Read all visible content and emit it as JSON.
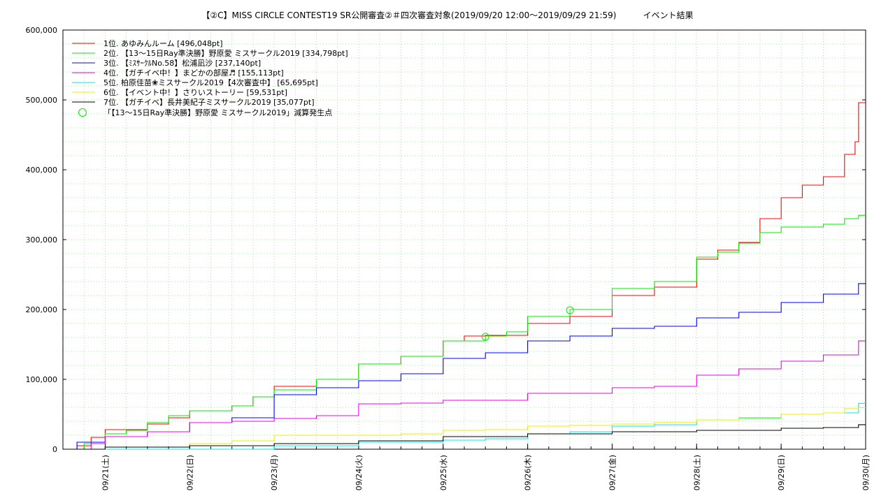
{
  "chart_data": {
    "type": "line",
    "title": "【②C】MISS CIRCLE CONTEST19 SR公開審査②＃四次審査対象(2019/09/20 12:00～2019/09/29 21:59)          イベント結果",
    "xlabel": "",
    "ylabel": "",
    "x_range": [
      "2019/09/20 12:00",
      "2019/09/30 00:00"
    ],
    "ylim": [
      0,
      600000
    ],
    "y_ticks": [
      {
        "value": 0,
        "label": "0"
      },
      {
        "value": 100000,
        "label": "100,000"
      },
      {
        "value": 200000,
        "label": "200,000"
      },
      {
        "value": 300000,
        "label": "300,000"
      },
      {
        "value": 400000,
        "label": "400,000"
      },
      {
        "value": 500000,
        "label": "500,000"
      },
      {
        "value": 600000,
        "label": "600,000"
      }
    ],
    "x_ticks": [
      {
        "value": "2019/09/21",
        "label": "09/21(土)"
      },
      {
        "value": "2019/09/22",
        "label": "09/22(日)"
      },
      {
        "value": "2019/09/23",
        "label": "09/23(月)"
      },
      {
        "value": "2019/09/24",
        "label": "09/24(火)"
      },
      {
        "value": "2019/09/25",
        "label": "09/25(水)"
      },
      {
        "value": "2019/09/26",
        "label": "09/26(木)"
      },
      {
        "value": "2019/09/27",
        "label": "09/27(金)"
      },
      {
        "value": "2019/09/28",
        "label": "09/28(土)"
      },
      {
        "value": "2019/09/29",
        "label": "09/29(日)"
      },
      {
        "value": "2019/09/30",
        "label": "09/30(月)"
      }
    ],
    "grid": true,
    "legend_position": "top-left",
    "series": [
      {
        "name": "1位. あゆみんルーム [496,048pt]",
        "color": "#ff0000",
        "points": [
          [
            "2019/09/20 12:00",
            0
          ],
          [
            "2019/09/20 16:00",
            5000
          ],
          [
            "2019/09/20 20:00",
            17000
          ],
          [
            "2019/09/21 00:00",
            28000
          ],
          [
            "2019/09/21 12:00",
            36000
          ],
          [
            "2019/09/21 18:00",
            45000
          ],
          [
            "2019/09/22 00:00",
            55000
          ],
          [
            "2019/09/22 08:00",
            55000
          ],
          [
            "2019/09/22 12:00",
            62000
          ],
          [
            "2019/09/22 18:00",
            75000
          ],
          [
            "2019/09/23 00:00",
            90000
          ],
          [
            "2019/09/23 12:00",
            100000
          ],
          [
            "2019/09/24 00:00",
            122000
          ],
          [
            "2019/09/24 12:00",
            133000
          ],
          [
            "2019/09/25 00:00",
            155000
          ],
          [
            "2019/09/25 06:00",
            162000
          ],
          [
            "2019/09/25 12:00",
            163000
          ],
          [
            "2019/09/26 00:00",
            180000
          ],
          [
            "2019/09/26 12:00",
            190000
          ],
          [
            "2019/09/27 00:00",
            220000
          ],
          [
            "2019/09/27 12:00",
            232000
          ],
          [
            "2019/09/28 00:00",
            272000
          ],
          [
            "2019/09/28 06:00",
            285000
          ],
          [
            "2019/09/28 12:00",
            296000
          ],
          [
            "2019/09/28 18:00",
            330000
          ],
          [
            "2019/09/29 00:00",
            360000
          ],
          [
            "2019/09/29 06:00",
            378000
          ],
          [
            "2019/09/29 12:00",
            390000
          ],
          [
            "2019/09/29 18:00",
            422000
          ],
          [
            "2019/09/29 21:00",
            440000
          ],
          [
            "2019/09/29 22:00",
            496048
          ],
          [
            "2019/09/30 00:00",
            496048
          ]
        ]
      },
      {
        "name": "2位. 【13～15日Ray準決勝】野原愛 ミスサークル2019 [334,798pt]",
        "color": "#00ee00",
        "points": [
          [
            "2019/09/20 12:00",
            0
          ],
          [
            "2019/09/20 18:00",
            8000
          ],
          [
            "2019/09/21 00:00",
            22000
          ],
          [
            "2019/09/21 06:00",
            27000
          ],
          [
            "2019/09/21 12:00",
            38000
          ],
          [
            "2019/09/21 18:00",
            48000
          ],
          [
            "2019/09/22 00:00",
            55000
          ],
          [
            "2019/09/22 12:00",
            62000
          ],
          [
            "2019/09/22 18:00",
            75000
          ],
          [
            "2019/09/23 00:00",
            85000
          ],
          [
            "2019/09/23 12:00",
            100000
          ],
          [
            "2019/09/24 00:00",
            122000
          ],
          [
            "2019/09/24 12:00",
            133000
          ],
          [
            "2019/09/25 00:00",
            155000
          ],
          [
            "2019/09/25 12:00",
            162000
          ],
          [
            "2019/09/25 18:00",
            168000
          ],
          [
            "2019/09/26 00:00",
            190000
          ],
          [
            "2019/09/26 12:00",
            200000
          ],
          [
            "2019/09/27 00:00",
            230000
          ],
          [
            "2019/09/27 12:00",
            240000
          ],
          [
            "2019/09/28 00:00",
            275000
          ],
          [
            "2019/09/28 06:00",
            282000
          ],
          [
            "2019/09/28 12:00",
            295000
          ],
          [
            "2019/09/28 18:00",
            310000
          ],
          [
            "2019/09/29 00:00",
            318000
          ],
          [
            "2019/09/29 12:00",
            322000
          ],
          [
            "2019/09/29 18:00",
            330000
          ],
          [
            "2019/09/29 21:59",
            334798
          ],
          [
            "2019/09/30 00:00",
            334798
          ]
        ]
      },
      {
        "name": "3位. 【ﾐｽｻｰｸﾙNo.58】松浦凪沙 [237,140pt]",
        "color": "#0000ff",
        "points": [
          [
            "2019/09/20 12:00",
            0
          ],
          [
            "2019/09/20 16:00",
            10000
          ],
          [
            "2019/09/21 00:00",
            18000
          ],
          [
            "2019/09/21 12:00",
            25000
          ],
          [
            "2019/09/22 00:00",
            38000
          ],
          [
            "2019/09/22 12:00",
            45000
          ],
          [
            "2019/09/23 00:00",
            78000
          ],
          [
            "2019/09/23 12:00",
            88000
          ],
          [
            "2019/09/24 00:00",
            98000
          ],
          [
            "2019/09/24 12:00",
            108000
          ],
          [
            "2019/09/25 00:00",
            130000
          ],
          [
            "2019/09/25 12:00",
            138000
          ],
          [
            "2019/09/26 00:00",
            155000
          ],
          [
            "2019/09/26 12:00",
            162000
          ],
          [
            "2019/09/27 00:00",
            173000
          ],
          [
            "2019/09/27 12:00",
            176000
          ],
          [
            "2019/09/28 00:00",
            188000
          ],
          [
            "2019/09/28 12:00",
            196000
          ],
          [
            "2019/09/29 00:00",
            210000
          ],
          [
            "2019/09/29 12:00",
            222000
          ],
          [
            "2019/09/29 21:59",
            237140
          ],
          [
            "2019/09/30 00:00",
            237140
          ]
        ]
      },
      {
        "name": "4位. 【ガチイベ中！】まどかの部屋♬ [155,113pt]",
        "color": "#ee00ee",
        "points": [
          [
            "2019/09/20 12:00",
            0
          ],
          [
            "2019/09/20 20:00",
            8000
          ],
          [
            "2019/09/21 00:00",
            18000
          ],
          [
            "2019/09/21 12:00",
            25000
          ],
          [
            "2019/09/22 00:00",
            38000
          ],
          [
            "2019/09/22 12:00",
            40000
          ],
          [
            "2019/09/23 00:00",
            44000
          ],
          [
            "2019/09/23 12:00",
            48000
          ],
          [
            "2019/09/24 00:00",
            65000
          ],
          [
            "2019/09/24 12:00",
            66000
          ],
          [
            "2019/09/25 00:00",
            70000
          ],
          [
            "2019/09/25 12:00",
            70000
          ],
          [
            "2019/09/26 00:00",
            80000
          ],
          [
            "2019/09/26 12:00",
            80000
          ],
          [
            "2019/09/27 00:00",
            88000
          ],
          [
            "2019/09/27 12:00",
            90000
          ],
          [
            "2019/09/28 00:00",
            106000
          ],
          [
            "2019/09/28 12:00",
            115000
          ],
          [
            "2019/09/29 00:00",
            126000
          ],
          [
            "2019/09/29 12:00",
            135000
          ],
          [
            "2019/09/29 21:59",
            155113
          ],
          [
            "2019/09/30 00:00",
            155113
          ]
        ]
      },
      {
        "name": "5位. 柏原佳苗❀ミスサークル2019【4次審査中】 [65,695pt]",
        "color": "#00eeee",
        "points": [
          [
            "2019/09/20 12:00",
            0
          ],
          [
            "2019/09/22 12:00",
            0
          ],
          [
            "2019/09/23 00:00",
            5000
          ],
          [
            "2019/09/24 00:00",
            10000
          ],
          [
            "2019/09/25 00:00",
            13000
          ],
          [
            "2019/09/25 12:00",
            15000
          ],
          [
            "2019/09/26 00:00",
            22000
          ],
          [
            "2019/09/26 12:00",
            25000
          ],
          [
            "2019/09/27 00:00",
            33000
          ],
          [
            "2019/09/27 12:00",
            35000
          ],
          [
            "2019/09/28 00:00",
            42000
          ],
          [
            "2019/09/28 12:00",
            45000
          ],
          [
            "2019/09/29 00:00",
            50000
          ],
          [
            "2019/09/29 12:00",
            52000
          ],
          [
            "2019/09/29 21:59",
            65695
          ],
          [
            "2019/09/30 00:00",
            65695
          ]
        ]
      },
      {
        "name": "6位. 【イベント中！】さりいストーリー [59,531pt]",
        "color": "#eeee00",
        "points": [
          [
            "2019/09/20 12:00",
            0
          ],
          [
            "2019/09/21 00:00",
            3000
          ],
          [
            "2019/09/22 00:00",
            8000
          ],
          [
            "2019/09/22 12:00",
            12000
          ],
          [
            "2019/09/23 00:00",
            20000
          ],
          [
            "2019/09/24 00:00",
            20000
          ],
          [
            "2019/09/24 12:00",
            22000
          ],
          [
            "2019/09/25 00:00",
            27000
          ],
          [
            "2019/09/25 12:00",
            28000
          ],
          [
            "2019/09/26 00:00",
            33000
          ],
          [
            "2019/09/26 12:00",
            34000
          ],
          [
            "2019/09/27 00:00",
            36000
          ],
          [
            "2019/09/27 12:00",
            38000
          ],
          [
            "2019/09/28 00:00",
            42000
          ],
          [
            "2019/09/28 12:00",
            44000
          ],
          [
            "2019/09/29 00:00",
            50000
          ],
          [
            "2019/09/29 12:00",
            52000
          ],
          [
            "2019/09/29 18:00",
            58000
          ],
          [
            "2019/09/29 21:59",
            59531
          ],
          [
            "2019/09/30 00:00",
            59531
          ]
        ]
      },
      {
        "name": "7位. 【ガチイベ】長井美紀子ミスサークル2019 [35,077pt]",
        "color": "#000000",
        "points": [
          [
            "2019/09/20 12:00",
            0
          ],
          [
            "2019/09/21 00:00",
            3000
          ],
          [
            "2019/09/22 00:00",
            5000
          ],
          [
            "2019/09/23 00:00",
            8000
          ],
          [
            "2019/09/24 00:00",
            12000
          ],
          [
            "2019/09/25 00:00",
            18000
          ],
          [
            "2019/09/26 00:00",
            22000
          ],
          [
            "2019/09/27 00:00",
            25000
          ],
          [
            "2019/09/28 00:00",
            27000
          ],
          [
            "2019/09/29 00:00",
            30000
          ],
          [
            "2019/09/29 12:00",
            31000
          ],
          [
            "2019/09/29 21:59",
            35077
          ],
          [
            "2019/09/30 00:00",
            35077
          ]
        ]
      }
    ],
    "markers": {
      "name": "「【13～15日Ray準決勝】野原愛 ミスサークル2019」減算発生点",
      "color": "#00ee00",
      "points": [
        [
          "2019/09/25 12:00",
          161000
        ],
        [
          "2019/09/26 12:00",
          199000
        ]
      ]
    }
  }
}
